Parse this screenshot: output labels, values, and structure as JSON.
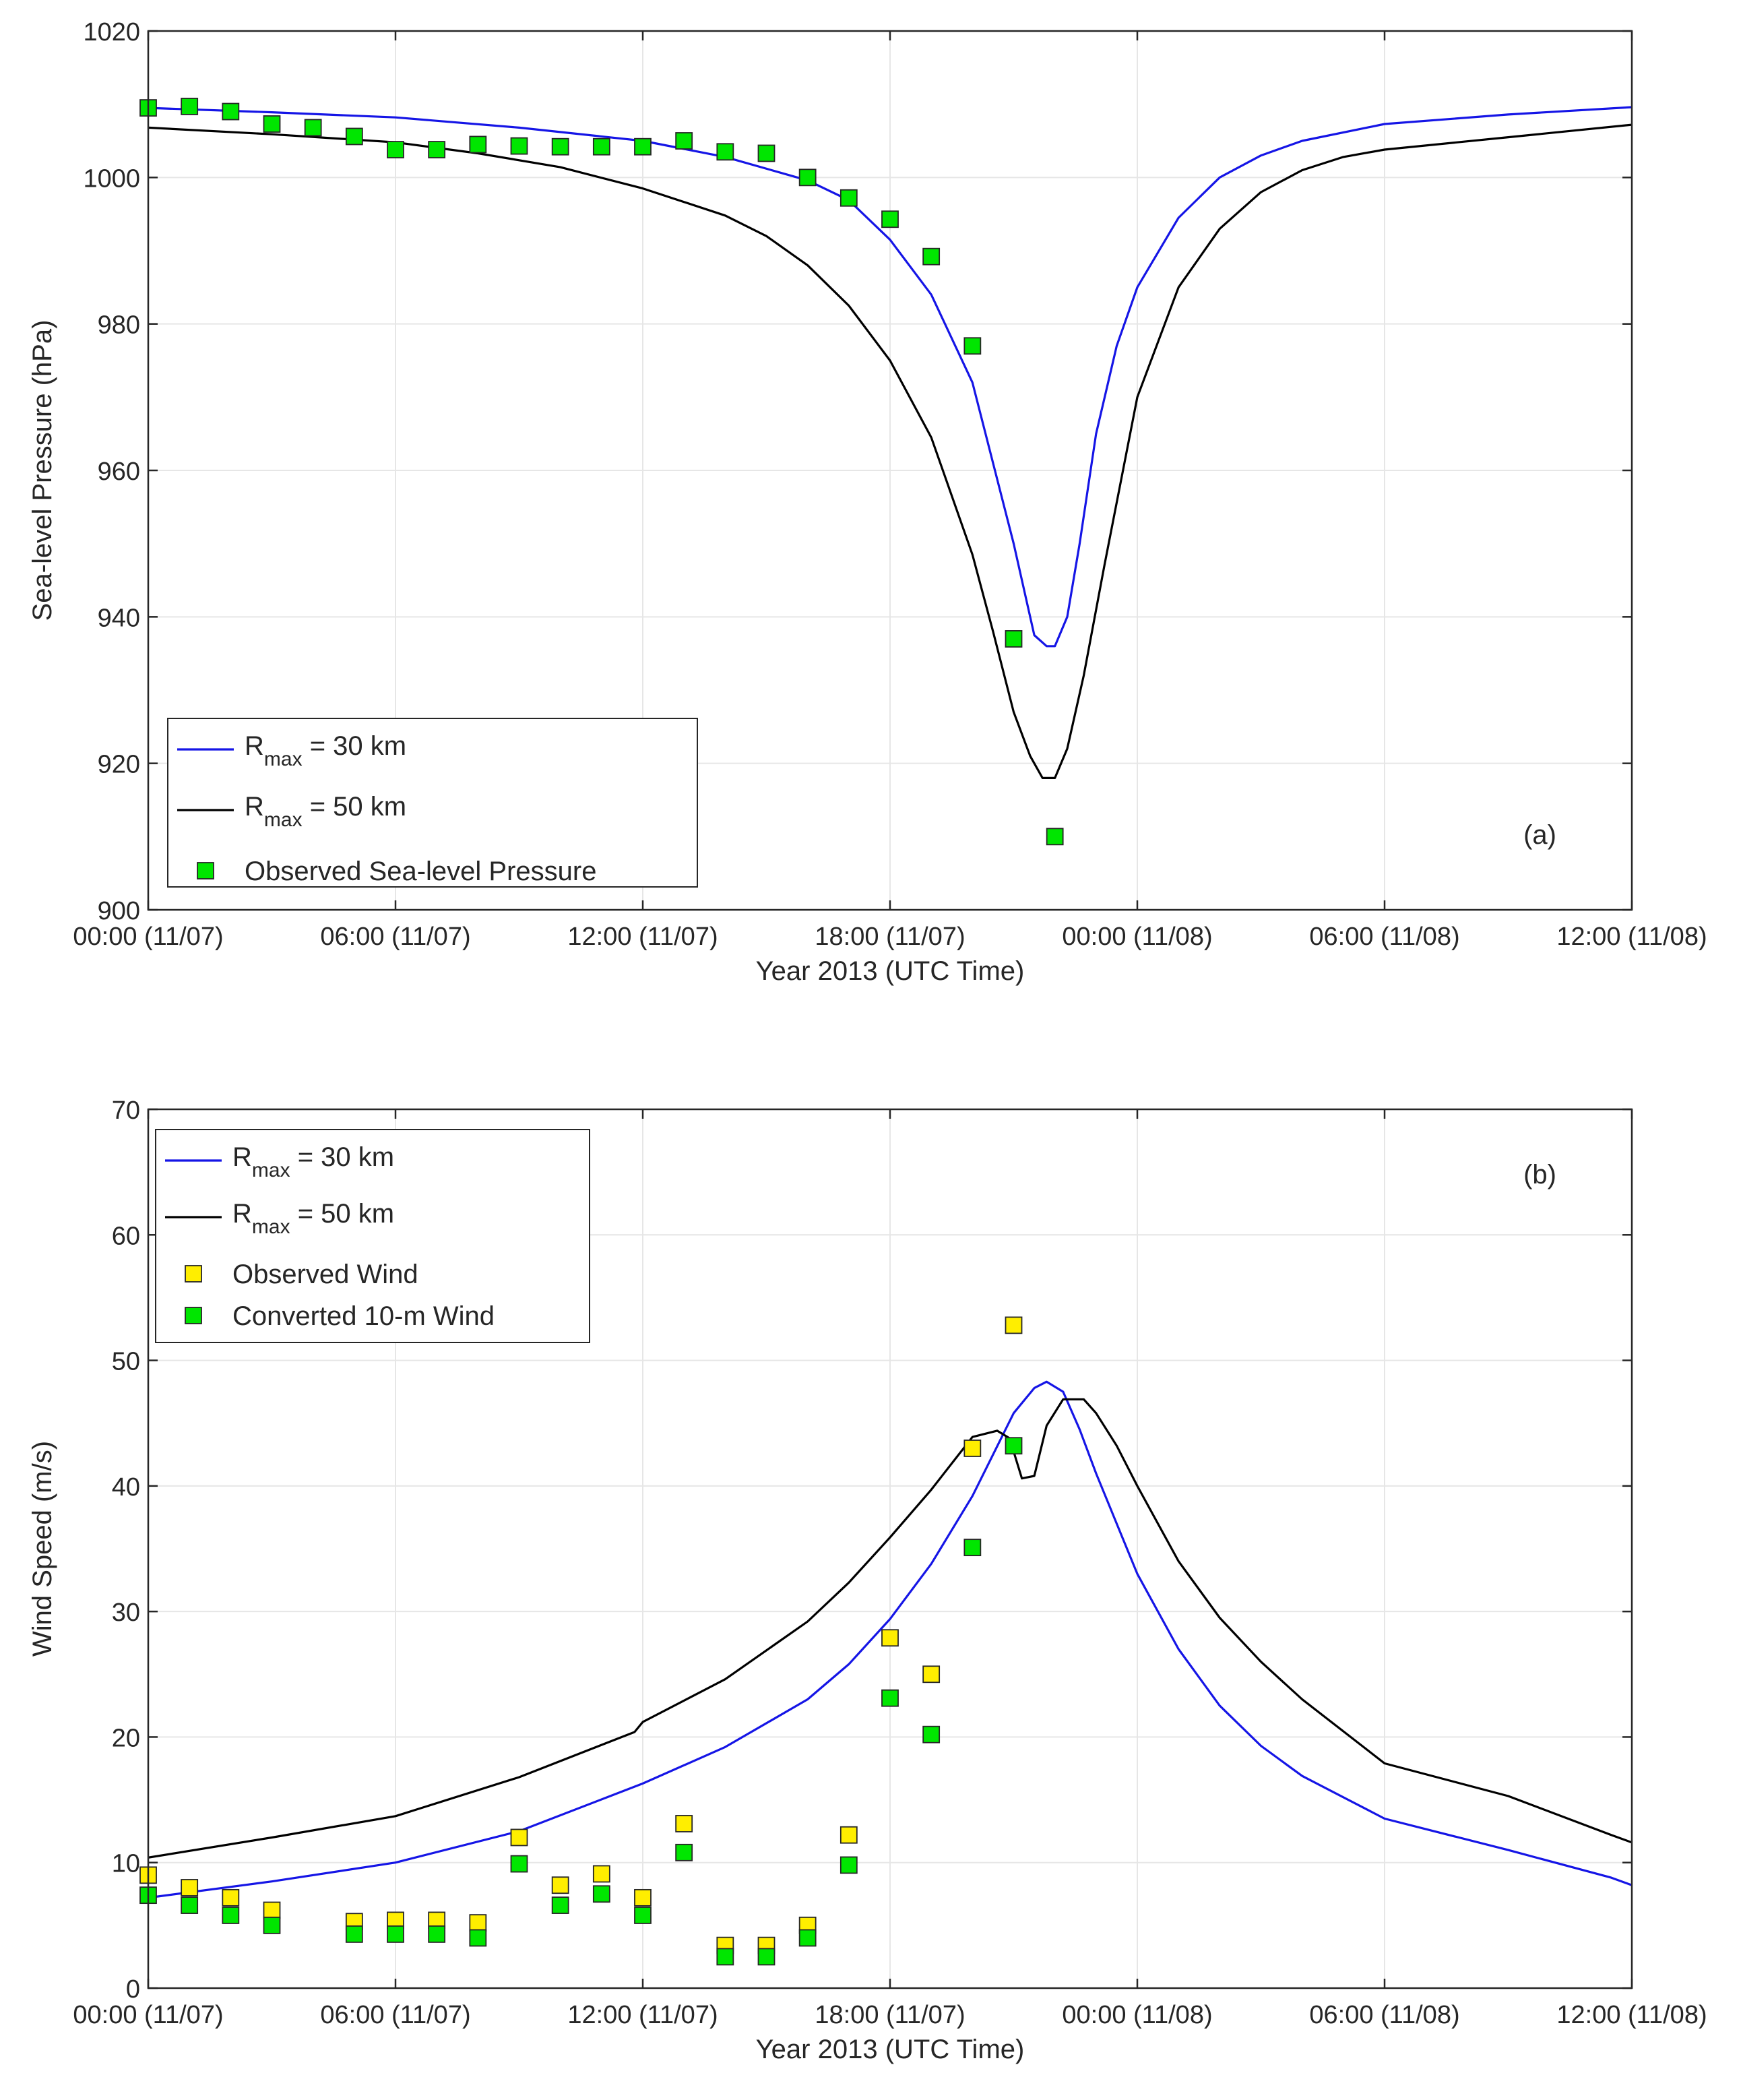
{
  "chart_data": [
    {
      "type": "line",
      "panel_label": "(a)",
      "xlabel": "Year 2013 (UTC Time)",
      "ylabel": "Sea-level Pressure (hPa)",
      "xlim": [
        0,
        36
      ],
      "ylim": [
        900,
        1020
      ],
      "x_ticks": [
        0,
        6,
        12,
        18,
        24,
        30,
        36
      ],
      "x_tick_labels": [
        "00:00 (11/07)",
        "06:00 (11/07)",
        "12:00 (11/07)",
        "18:00 (11/07)",
        "00:00 (11/08)",
        "06:00 (11/08)",
        "12:00 (11/08)"
      ],
      "y_ticks": [
        900,
        920,
        940,
        960,
        980,
        1000,
        1020
      ],
      "legend_position": "bottom-left",
      "series": [
        {
          "name": "R_max = 30 km",
          "legend_main": "R",
          "legend_sub": "max",
          "legend_rest": " = 30 km",
          "kind": "line",
          "color": "#1515e6",
          "x": [
            0,
            3,
            6,
            9,
            12,
            14,
            16,
            17,
            18,
            19,
            20,
            21,
            21.5,
            21.8,
            22.0,
            22.3,
            22.6,
            23.0,
            23.5,
            24,
            25,
            26,
            27,
            28,
            30,
            33,
            36
          ],
          "y": [
            1009.5,
            1008.9,
            1008.2,
            1006.8,
            1005.0,
            1002.8,
            999.6,
            996.9,
            991.5,
            984.0,
            972.0,
            950.0,
            937.5,
            936.0,
            936.0,
            940.0,
            950.0,
            965.0,
            977.0,
            985.0,
            994.5,
            1000.0,
            1003.0,
            1005.0,
            1007.3,
            1008.6,
            1009.6
          ]
        },
        {
          "name": "R_max = 50 km",
          "legend_main": "R",
          "legend_sub": "max",
          "legend_rest": " = 50 km",
          "kind": "line",
          "color": "#000000",
          "x": [
            0,
            3,
            6,
            8,
            10,
            12,
            14,
            15,
            16,
            17,
            18,
            19,
            20,
            20.5,
            21,
            21.4,
            21.7,
            22.0,
            22.3,
            22.7,
            23.2,
            24,
            25,
            26,
            27,
            28,
            29,
            30,
            33,
            36
          ],
          "y": [
            1006.8,
            1005.9,
            1004.8,
            1003.3,
            1001.4,
            998.5,
            994.8,
            992.0,
            988.0,
            982.5,
            975.0,
            964.5,
            948.5,
            938.0,
            927.0,
            921.0,
            918.0,
            918.0,
            922.0,
            932.0,
            947.0,
            970.0,
            985.0,
            993.0,
            998.0,
            1001.0,
            1002.8,
            1003.8,
            1005.5,
            1007.2
          ]
        },
        {
          "name": "Observed Sea-level Pressure",
          "kind": "marker",
          "color": "#00e600",
          "x": [
            0,
            1,
            2,
            3,
            4,
            5,
            6,
            7,
            8,
            9,
            10,
            11,
            12,
            13,
            14,
            15,
            16,
            17,
            18,
            19,
            20,
            21,
            22
          ],
          "y": [
            1009.5,
            1009.7,
            1009.0,
            1007.3,
            1006.8,
            1005.6,
            1003.8,
            1003.8,
            1004.5,
            1004.3,
            1004.2,
            1004.2,
            1004.2,
            1005.0,
            1003.5,
            1003.3,
            1000.0,
            997.2,
            994.3,
            989.2,
            977.0,
            937.0,
            910.0
          ]
        }
      ]
    },
    {
      "type": "line",
      "panel_label": "(b)",
      "xlabel": "Year 2013 (UTC Time)",
      "ylabel": "Wind Speed (m/s)",
      "xlim": [
        0,
        36
      ],
      "ylim": [
        0,
        70
      ],
      "x_ticks": [
        0,
        6,
        12,
        18,
        24,
        30,
        36
      ],
      "x_tick_labels": [
        "00:00 (11/07)",
        "06:00 (11/07)",
        "12:00 (11/07)",
        "18:00 (11/07)",
        "00:00 (11/08)",
        "06:00 (11/08)",
        "12:00 (11/08)"
      ],
      "y_ticks": [
        0,
        10,
        20,
        30,
        40,
        50,
        60,
        70
      ],
      "legend_position": "top-left",
      "series": [
        {
          "name": "R_max = 30 km",
          "legend_main": "R",
          "legend_sub": "max",
          "legend_rest": " = 30 km",
          "kind": "line",
          "color": "#1515e6",
          "x": [
            0,
            3,
            6,
            9,
            12,
            14,
            16,
            17,
            18,
            19,
            20,
            21,
            21.5,
            21.8,
            22.2,
            22.6,
            23,
            24,
            25,
            26,
            27,
            28,
            30,
            33,
            35.5,
            36
          ],
          "y": [
            7.2,
            8.5,
            10.0,
            12.5,
            16.3,
            19.2,
            23.0,
            25.8,
            29.4,
            33.8,
            39.2,
            45.8,
            47.8,
            48.3,
            47.5,
            44.5,
            41.0,
            33.0,
            27.0,
            22.5,
            19.3,
            16.9,
            13.5,
            11.0,
            8.8,
            8.2
          ]
        },
        {
          "name": "R_max = 50 km",
          "legend_main": "R",
          "legend_sub": "max",
          "legend_rest": " = 50 km",
          "kind": "line",
          "color": "#000000",
          "x": [
            0,
            3,
            6,
            9,
            11.8,
            12,
            14,
            16,
            17,
            18,
            19,
            20,
            20.6,
            20.9,
            21.2,
            21.5,
            21.8,
            22.2,
            22.7,
            23.0,
            23.5,
            24,
            25,
            26,
            27,
            28,
            30,
            33,
            35.5,
            36
          ],
          "y": [
            10.4,
            12.0,
            13.7,
            16.8,
            20.4,
            21.2,
            24.6,
            29.2,
            32.3,
            35.9,
            39.7,
            43.9,
            44.4,
            43.8,
            40.6,
            40.8,
            44.8,
            46.9,
            46.9,
            45.8,
            43.2,
            40.0,
            34.0,
            29.5,
            26.0,
            23.0,
            17.9,
            15.3,
            12.2,
            11.6
          ]
        },
        {
          "name": "Observed Wind",
          "kind": "marker",
          "color": "#ffee00",
          "x": [
            0,
            1,
            2,
            3,
            5,
            6,
            7,
            8,
            9,
            10,
            11,
            12,
            13,
            14,
            15,
            16,
            17,
            18,
            19,
            20,
            21
          ],
          "y": [
            9.0,
            8.0,
            7.2,
            6.2,
            5.3,
            5.4,
            5.4,
            5.2,
            12.0,
            8.2,
            9.1,
            7.2,
            13.1,
            3.4,
            3.4,
            5.0,
            12.2,
            27.9,
            25.0,
            43.0,
            52.8
          ]
        },
        {
          "name": "Converted 10-m Wind",
          "kind": "marker",
          "color": "#00e600",
          "x": [
            0,
            1,
            2,
            3,
            5,
            6,
            7,
            8,
            9,
            10,
            11,
            12,
            13,
            14,
            15,
            16,
            17,
            18,
            19,
            20,
            21
          ],
          "y": [
            7.4,
            6.6,
            5.8,
            5.0,
            4.3,
            4.3,
            4.3,
            4.0,
            9.9,
            6.6,
            7.5,
            5.8,
            10.8,
            2.5,
            2.5,
            4.0,
            9.8,
            23.1,
            20.2,
            35.1,
            43.2
          ]
        }
      ]
    }
  ]
}
